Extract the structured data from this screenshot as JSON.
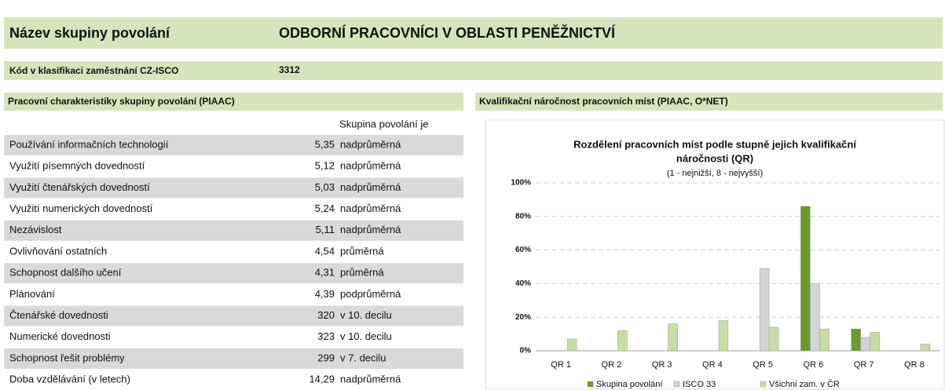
{
  "header": {
    "title_label": "Název skupiny povolání",
    "title_value": "ODBORNÍ PRACOVNÍCI V OBLASTI PENĚŽNICTVÍ",
    "code_label": "Kód v klasifikaci zaměstnání CZ-ISCO",
    "code_value": "3312"
  },
  "table": {
    "title": "Pracovní charakteristiky skupiny povolání (PIAAC)",
    "column_header": "Skupina povolání je",
    "rows": [
      [
        "Používání informačních technologií",
        "5,35",
        "nadprůměrná"
      ],
      [
        "Využití písemných dovedností",
        "5,12",
        "nadprůměrná"
      ],
      [
        "Využití čtenářských dovedností",
        "5,03",
        "nadprůměrná"
      ],
      [
        "Využití numerických dovedností",
        "5,24",
        "nadprůměrná"
      ],
      [
        "Nezávislost",
        "5,11",
        "nadprůměrná"
      ],
      [
        "Ovlivňování ostatních",
        "4,54",
        "průměrná"
      ],
      [
        "Schopnost dalšího učení",
        "4,31",
        "průměrná"
      ],
      [
        "Plánování",
        "4,39",
        "podprůměrná"
      ],
      [
        "Čtenářské dovednosti",
        "320",
        "v 10. decilu"
      ],
      [
        "Numerické dovednosti",
        "323",
        "v 10. decilu"
      ],
      [
        "Schopnost řešit problémy",
        "299",
        "v 7. decilu"
      ],
      [
        "Doba vzdělávání (v letech)",
        "14,29",
        "nadprůměrná"
      ]
    ]
  },
  "chart_section_title": "Kvalifikační náročnost pracovních míst (PIAAC, O*NET)",
  "chart_data": {
    "type": "bar",
    "title": [
      "Rozdělení pracovních míst podle stupně jejich kvalifikační",
      "náročnosti (QR)"
    ],
    "subtitle": "(1 - nejnižší, 8 - nejvyšší)",
    "categories": [
      "QR 1",
      "QR 2",
      "QR 3",
      "QR 4",
      "QR 5",
      "QR 6",
      "QR 7",
      "QR 8"
    ],
    "series": [
      {
        "name": "Skupina povolání",
        "color": "#6b9a2c",
        "values": [
          0,
          0,
          0,
          0,
          0,
          86,
          13,
          0
        ]
      },
      {
        "name": "ISCO 33",
        "color": "#d4d4d4",
        "values": [
          0,
          0,
          0,
          0,
          49,
          40,
          8,
          0
        ]
      },
      {
        "name": "Všichni zam. v ČR",
        "color": "#c9dca3",
        "values": [
          7,
          12,
          16,
          18,
          14,
          13,
          11,
          4
        ]
      }
    ],
    "ylim": [
      0,
      100
    ],
    "yticks": [
      {
        "value": 0,
        "label": "0%"
      },
      {
        "value": 20,
        "label": "20%"
      },
      {
        "value": 40,
        "label": "40%"
      },
      {
        "value": 60,
        "label": "60%"
      },
      {
        "value": 80,
        "label": "80%"
      },
      {
        "value": 100,
        "label": "100%"
      }
    ],
    "grid": true
  }
}
